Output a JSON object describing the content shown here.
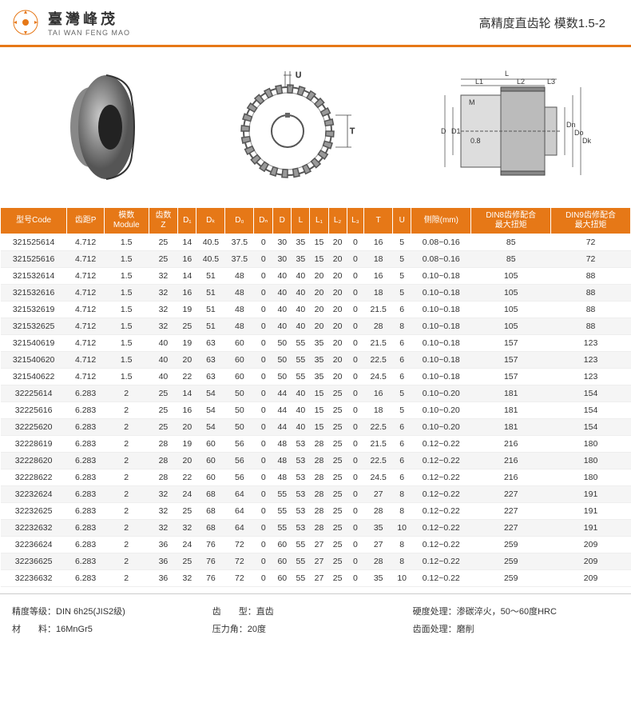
{
  "header": {
    "brand_cn": "臺灣峰茂",
    "brand_en": "TAI WAN FENG MAO",
    "product_title": "高精度直齿轮 模数1.5-2"
  },
  "table": {
    "columns": [
      "型号Code",
      "齿距P",
      "模数\nModule",
      "齿数\nZ",
      "D₁",
      "Dₖ",
      "D₀",
      "Dₙ",
      "D",
      "L",
      "L₁",
      "L₂",
      "L₃",
      "T",
      "U",
      "侧隙(mm)",
      "DIN8齿修配合\n最大扭矩",
      "DIN9齿修配合\n最大扭矩"
    ],
    "rows": [
      [
        "321525614",
        "4.712",
        "1.5",
        "25",
        "14",
        "40.5",
        "37.5",
        "0",
        "30",
        "35",
        "15",
        "20",
        "0",
        "16",
        "5",
        "0.08~0.16",
        "85",
        "72"
      ],
      [
        "321525616",
        "4.712",
        "1.5",
        "25",
        "16",
        "40.5",
        "37.5",
        "0",
        "30",
        "35",
        "15",
        "20",
        "0",
        "18",
        "5",
        "0.08~0.16",
        "85",
        "72"
      ],
      [
        "321532614",
        "4.712",
        "1.5",
        "32",
        "14",
        "51",
        "48",
        "0",
        "40",
        "40",
        "20",
        "20",
        "0",
        "16",
        "5",
        "0.10~0.18",
        "105",
        "88"
      ],
      [
        "321532616",
        "4.712",
        "1.5",
        "32",
        "16",
        "51",
        "48",
        "0",
        "40",
        "40",
        "20",
        "20",
        "0",
        "18",
        "5",
        "0.10~0.18",
        "105",
        "88"
      ],
      [
        "321532619",
        "4.712",
        "1.5",
        "32",
        "19",
        "51",
        "48",
        "0",
        "40",
        "40",
        "20",
        "20",
        "0",
        "21.5",
        "6",
        "0.10~0.18",
        "105",
        "88"
      ],
      [
        "321532625",
        "4.712",
        "1.5",
        "32",
        "25",
        "51",
        "48",
        "0",
        "40",
        "40",
        "20",
        "20",
        "0",
        "28",
        "8",
        "0.10~0.18",
        "105",
        "88"
      ],
      [
        "321540619",
        "4.712",
        "1.5",
        "40",
        "19",
        "63",
        "60",
        "0",
        "50",
        "55",
        "35",
        "20",
        "0",
        "21.5",
        "6",
        "0.10~0.18",
        "157",
        "123"
      ],
      [
        "321540620",
        "4.712",
        "1.5",
        "40",
        "20",
        "63",
        "60",
        "0",
        "50",
        "55",
        "35",
        "20",
        "0",
        "22.5",
        "6",
        "0.10~0.18",
        "157",
        "123"
      ],
      [
        "321540622",
        "4.712",
        "1.5",
        "40",
        "22",
        "63",
        "60",
        "0",
        "50",
        "55",
        "35",
        "20",
        "0",
        "24.5",
        "6",
        "0.10~0.18",
        "157",
        "123"
      ],
      [
        "32225614",
        "6.283",
        "2",
        "25",
        "14",
        "54",
        "50",
        "0",
        "44",
        "40",
        "15",
        "25",
        "0",
        "16",
        "5",
        "0.10~0.20",
        "181",
        "154"
      ],
      [
        "32225616",
        "6.283",
        "2",
        "25",
        "16",
        "54",
        "50",
        "0",
        "44",
        "40",
        "15",
        "25",
        "0",
        "18",
        "5",
        "0.10~0.20",
        "181",
        "154"
      ],
      [
        "32225620",
        "6.283",
        "2",
        "25",
        "20",
        "54",
        "50",
        "0",
        "44",
        "40",
        "15",
        "25",
        "0",
        "22.5",
        "6",
        "0.10~0.20",
        "181",
        "154"
      ],
      [
        "32228619",
        "6.283",
        "2",
        "28",
        "19",
        "60",
        "56",
        "0",
        "48",
        "53",
        "28",
        "25",
        "0",
        "21.5",
        "6",
        "0.12~0.22",
        "216",
        "180"
      ],
      [
        "32228620",
        "6.283",
        "2",
        "28",
        "20",
        "60",
        "56",
        "0",
        "48",
        "53",
        "28",
        "25",
        "0",
        "22.5",
        "6",
        "0.12~0.22",
        "216",
        "180"
      ],
      [
        "32228622",
        "6.283",
        "2",
        "28",
        "22",
        "60",
        "56",
        "0",
        "48",
        "53",
        "28",
        "25",
        "0",
        "24.5",
        "6",
        "0.12~0.22",
        "216",
        "180"
      ],
      [
        "32232624",
        "6.283",
        "2",
        "32",
        "24",
        "68",
        "64",
        "0",
        "55",
        "53",
        "28",
        "25",
        "0",
        "27",
        "8",
        "0.12~0.22",
        "227",
        "191"
      ],
      [
        "32232625",
        "6.283",
        "2",
        "32",
        "25",
        "68",
        "64",
        "0",
        "55",
        "53",
        "28",
        "25",
        "0",
        "28",
        "8",
        "0.12~0.22",
        "227",
        "191"
      ],
      [
        "32232632",
        "6.283",
        "2",
        "32",
        "32",
        "68",
        "64",
        "0",
        "55",
        "53",
        "28",
        "25",
        "0",
        "35",
        "10",
        "0.12~0.22",
        "227",
        "191"
      ],
      [
        "32236624",
        "6.283",
        "2",
        "36",
        "24",
        "76",
        "72",
        "0",
        "60",
        "55",
        "27",
        "25",
        "0",
        "27",
        "8",
        "0.12~0.22",
        "259",
        "209"
      ],
      [
        "32236625",
        "6.283",
        "2",
        "36",
        "25",
        "76",
        "72",
        "0",
        "60",
        "55",
        "27",
        "25",
        "0",
        "28",
        "8",
        "0.12~0.22",
        "259",
        "209"
      ],
      [
        "32236632",
        "6.283",
        "2",
        "36",
        "32",
        "76",
        "72",
        "0",
        "60",
        "55",
        "27",
        "25",
        "0",
        "35",
        "10",
        "0.12~0.22",
        "259",
        "209"
      ]
    ]
  },
  "footer": {
    "precision_label": "精度等级：",
    "precision_value": "DIN 6h25(JIS2级)",
    "material_label": "材　　料：",
    "material_value": "16MnGr5",
    "tooth_type_label": "齿　　型：",
    "tooth_type_value": "直齿",
    "pressure_angle_label": "压力角：",
    "pressure_angle_value": "20度",
    "hardness_label": "硬度处理：",
    "hardness_value": "渗碳淬火，50～60度HRC",
    "surface_label": "齿面处理：",
    "surface_value": "磨削"
  },
  "diagram_labels": {
    "U": "U",
    "T": "T",
    "L": "L",
    "L1": "L1",
    "L2": "L2",
    "L3": "L3",
    "D": "D",
    "D1": "D1",
    "Dn": "Dn",
    "Do": "Do",
    "Dk": "Dk",
    "M": "M",
    "gap": "0.8"
  },
  "colors": {
    "accent": "#e67817",
    "header_bg": "#e67817",
    "row_alt": "#f5f5f5",
    "text": "#333333",
    "border": "#eeeeee"
  }
}
